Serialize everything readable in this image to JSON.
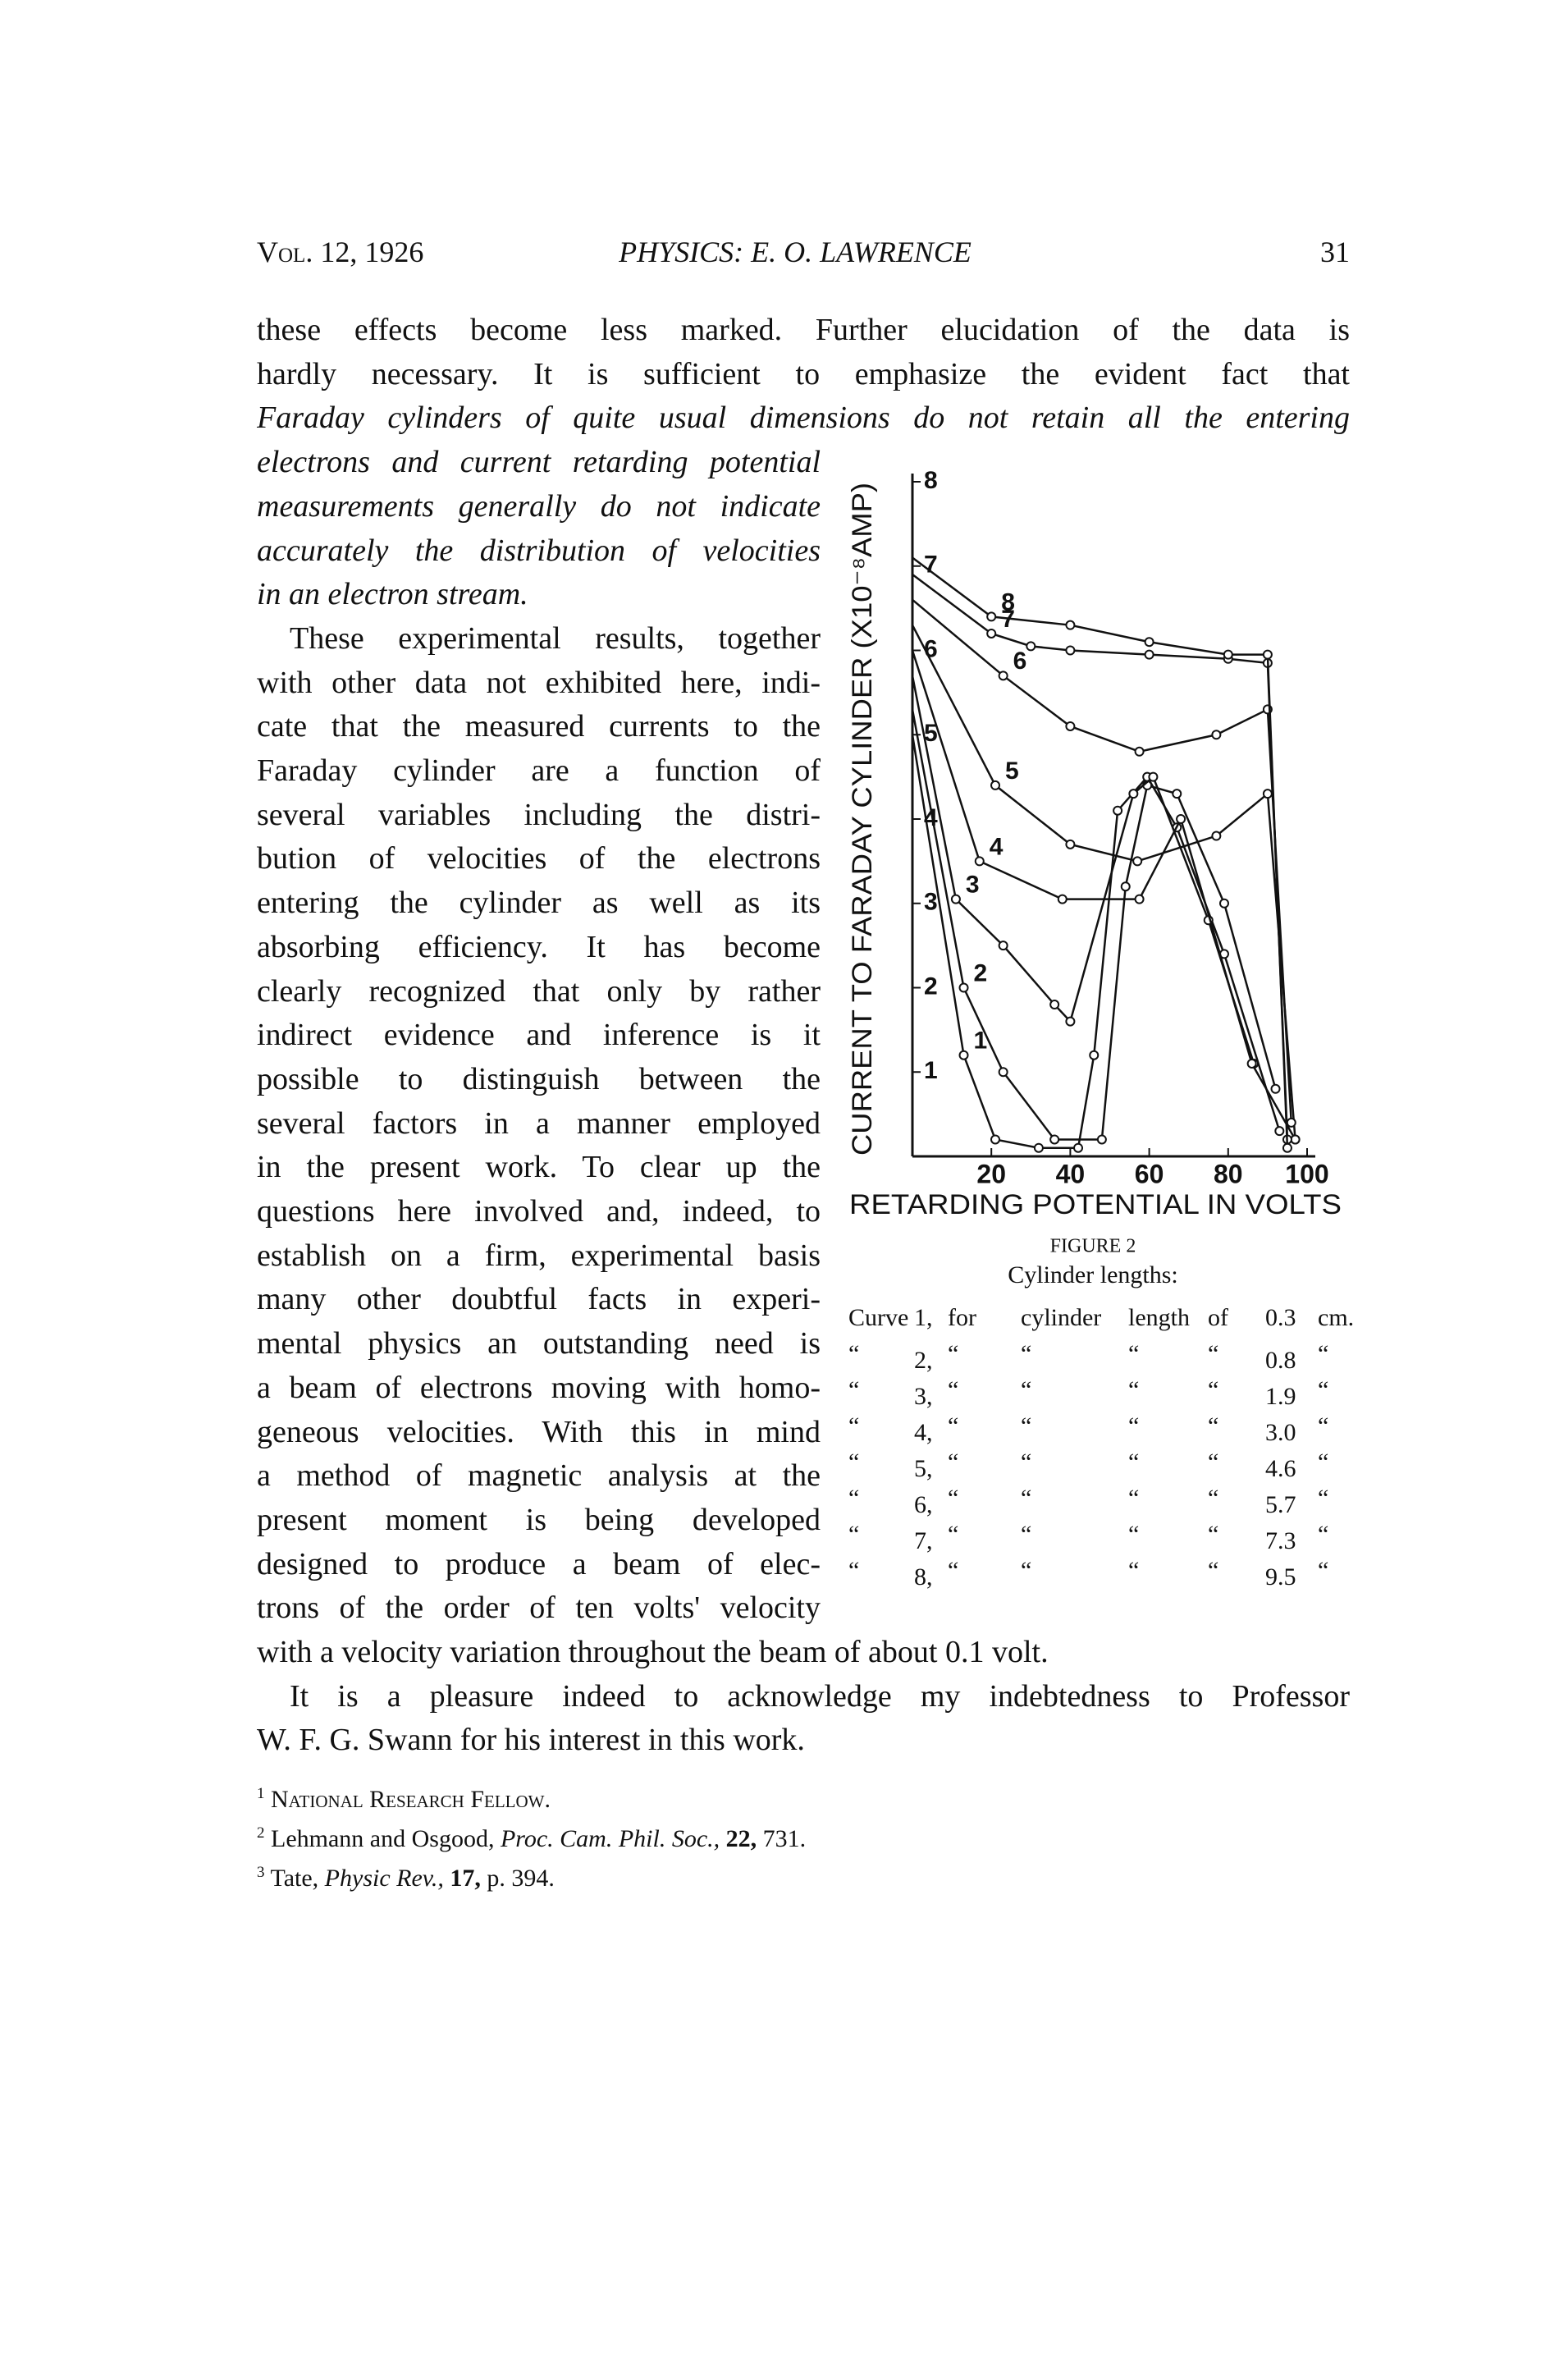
{
  "header": {
    "volume": "Vol. 12, 1926",
    "running_title": "PHYSICS: E. O. LAWRENCE",
    "page": "31"
  },
  "paragraphs": [
    [
      "these effects become less marked. Further elucidation of the data is",
      "hardly necessary. It is sufficient to emphasize the evident fact that",
      "Faraday cylinders of quite usual dimensions do not retain all the entering",
      "electrons and current retarding potential",
      "measurements generally do not indicate",
      "accurately the distribution of velocities",
      "in an electron stream."
    ],
    [
      "These experimental results, together",
      "with other data not exhibited here, indi-",
      "cate that the measured currents to the",
      "Faraday cylinder are a function of",
      "several variables including the distri-",
      "bution of velocities of the electrons",
      "entering the cylinder as well as its",
      "absorbing efficiency. It has become",
      "clearly recognized that only by rather",
      "indirect evidence and inference is it",
      "possible to distinguish between the",
      "several factors in a manner employed",
      "in the present work. To clear up the",
      "questions here involved and, indeed, to",
      "establish on a firm, experimental basis",
      "many other doubtful facts in experi-",
      "mental physics an outstanding need is",
      "a beam of electrons moving with homo-",
      "geneous velocities. With this in mind",
      "a method of magnetic analysis at the",
      "present moment is being developed",
      "designed to produce a beam of elec-",
      "trons of the order of ten volts' velocity",
      "with a velocity variation throughout the beam of about 0.1 volt."
    ],
    [
      "It is a pleasure indeed to acknowledge my indebtedness to Professor",
      "W. F. G. Swann for his interest in this work."
    ]
  ],
  "footnotes": [
    {
      "marker": "1",
      "text": "National Research Fellow."
    },
    {
      "marker": "2",
      "authors": "Lehmann and Osgood,",
      "journal": "Proc. Cam. Phil. Soc.,",
      "volume": "22,",
      "pages": "731."
    },
    {
      "marker": "3",
      "authors": "Tate,",
      "journal": "Physic Rev.,",
      "volume": "17,",
      "pages": "p. 394."
    }
  ],
  "chart_data": {
    "type": "line",
    "x_label": "RETARDING POTENTIAL IN VOLTS",
    "y_label": "CURRENT TO FARADAY CYLINDER (X10⁻⁸AMP)",
    "caption": "FIGURE 2",
    "subtitle": "Cylinder lengths:",
    "xlim": [
      0,
      100
    ],
    "ylim": [
      0,
      8
    ],
    "xticks": [
      20,
      40,
      60,
      80,
      100
    ],
    "yticks": [
      1,
      2,
      3,
      4,
      5,
      6,
      7,
      8
    ],
    "grid": false,
    "color": "#111111",
    "series": [
      {
        "name": "1",
        "x": [
          0,
          13,
          21,
          32,
          42,
          46,
          52,
          59.5,
          67,
          79,
          93
        ],
        "values": [
          5.0,
          1.2,
          0.2,
          0.1,
          0.1,
          1.2,
          4.1,
          4.5,
          3.9,
          2.4,
          0.3
        ]
      },
      {
        "name": "2",
        "x": [
          0,
          13,
          23,
          36,
          48,
          54,
          59.5,
          67,
          79,
          92
        ],
        "values": [
          5.3,
          2.0,
          1.0,
          0.2,
          0.2,
          3.2,
          4.4,
          4.3,
          3.0,
          0.8
        ]
      },
      {
        "name": "3",
        "x": [
          0,
          11,
          23,
          36,
          40,
          56,
          61,
          75,
          86.5
        ],
        "values": [
          5.7,
          3.05,
          2.5,
          1.8,
          1.6,
          4.3,
          4.5,
          2.8,
          1.1
        ]
      },
      {
        "name": "4",
        "x": [
          0,
          17,
          38,
          57.5,
          68,
          86,
          97
        ],
        "values": [
          6.0,
          3.5,
          3.05,
          3.05,
          4.0,
          1.1,
          0.2
        ]
      },
      {
        "name": "5",
        "x": [
          0,
          21,
          40,
          57,
          77,
          90,
          97
        ],
        "values": [
          6.3,
          4.4,
          3.7,
          3.5,
          3.8,
          4.3,
          0.2
        ]
      },
      {
        "name": "6",
        "x": [
          0,
          23,
          40,
          57.5,
          77,
          90,
          96
        ],
        "values": [
          6.6,
          5.7,
          5.1,
          4.8,
          5.0,
          5.3,
          0.4
        ]
      },
      {
        "name": "7",
        "x": [
          0,
          20,
          30,
          40,
          60,
          80,
          90,
          95
        ],
        "values": [
          6.9,
          6.2,
          6.05,
          6.0,
          5.95,
          5.9,
          5.85,
          0.2
        ]
      },
      {
        "name": "8",
        "x": [
          0,
          20,
          40,
          60,
          80,
          90,
          95
        ],
        "values": [
          7.1,
          6.4,
          6.3,
          6.1,
          5.95,
          5.95,
          0.1
        ]
      }
    ],
    "legend_rows": [
      [
        "Curve",
        "1,",
        "for",
        "cylinder",
        "length",
        "of",
        "0.3",
        "cm."
      ],
      [
        "“",
        "2,",
        "“",
        "“",
        "“",
        "“",
        "0.8",
        "“"
      ],
      [
        "“",
        "3,",
        "“",
        "“",
        "“",
        "“",
        "1.9",
        "“"
      ],
      [
        "“",
        "4,",
        "“",
        "“",
        "“",
        "“",
        "3.0",
        "“"
      ],
      [
        "“",
        "5,",
        "“",
        "“",
        "“",
        "“",
        "4.6",
        "“"
      ],
      [
        "“",
        "6,",
        "“",
        "“",
        "“",
        "“",
        "5.7",
        "“"
      ],
      [
        "“",
        "7,",
        "“",
        "“",
        "“",
        "“",
        "7.3",
        "“"
      ],
      [
        "“",
        "8,",
        "“",
        "“",
        "“",
        "“",
        "9.5",
        "“"
      ]
    ]
  }
}
